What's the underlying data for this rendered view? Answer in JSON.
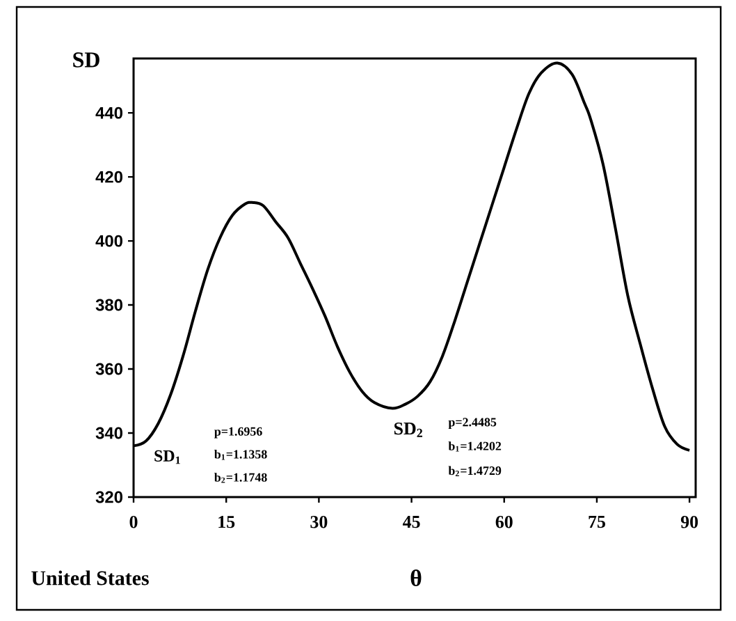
{
  "chart_data": {
    "type": "line",
    "xlabel": "θ",
    "ylabel": "SD",
    "xlim": [
      0,
      91
    ],
    "ylim": [
      320,
      457
    ],
    "xticks": [
      0,
      15,
      30,
      45,
      60,
      75,
      90
    ],
    "yticks": [
      320,
      340,
      360,
      380,
      400,
      420,
      440
    ],
    "series": [
      {
        "color": "#000000",
        "x": [
          0,
          2,
          4,
          6,
          8,
          10,
          12,
          14,
          16,
          18,
          19.3,
          21,
          23,
          25,
          27,
          29,
          31,
          33,
          35,
          37,
          39,
          41.9,
          44,
          46,
          48,
          50,
          52,
          54,
          56,
          58,
          60,
          62,
          64,
          66,
          68.6,
          71,
          73,
          74,
          76,
          78,
          80,
          82,
          84,
          86,
          88,
          90
        ],
        "values": [
          336,
          337.5,
          343,
          352,
          364,
          378,
          391,
          401,
          408,
          411.5,
          412,
          411,
          406,
          401,
          393,
          385,
          376.5,
          367,
          359,
          353,
          349.5,
          347.7,
          349,
          351.5,
          356,
          364,
          375,
          387,
          399,
          411,
          423,
          435,
          446,
          452.5,
          455.6,
          452,
          443,
          438,
          424,
          404,
          383,
          368,
          354,
          342,
          336.5,
          334.6
        ]
      }
    ],
    "annotations": [
      "SD$_{1}$",
      "p=1.6956",
      "b$_{1}$=1.1358",
      "b$_{2}$=1.1748",
      "SD$_{2}$",
      "p=2.4485",
      "b$_{1}$=1.4202",
      "b$_{2}$=1.4729",
      "United States"
    ]
  }
}
